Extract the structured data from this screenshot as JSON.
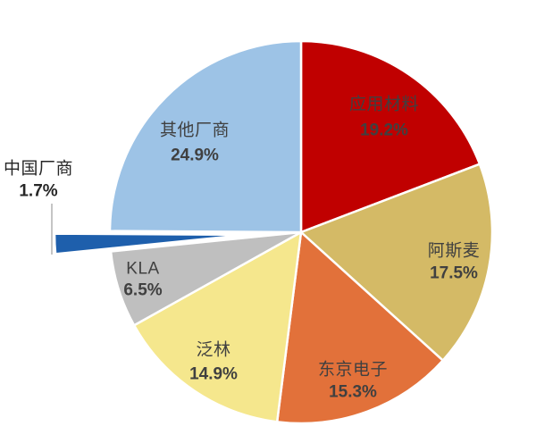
{
  "chart_data": {
    "type": "pie",
    "title": "",
    "value_unit": "%",
    "direction": "clockwise",
    "start_angle_deg": 0,
    "background_color": "#FFFFFF",
    "inside_label_text_color": "#404040",
    "outside_label_text_color": "#262626",
    "leader_line_color": "#A6A6A6",
    "slice_gap_color": "#FFFFFF",
    "slices": [
      {
        "name": "应用材料",
        "value": 19.2,
        "pct_label": "19.2%",
        "color": "#C00000",
        "exploded": false,
        "label_inside": true
      },
      {
        "name": "阿斯麦",
        "value": 17.5,
        "pct_label": "17.5%",
        "color": "#D4BA66",
        "exploded": false,
        "label_inside": true
      },
      {
        "name": "东京电子",
        "value": 15.3,
        "pct_label": "15.3%",
        "color": "#E2713A",
        "exploded": false,
        "label_inside": true
      },
      {
        "name": "泛林",
        "value": 14.9,
        "pct_label": "14.9%",
        "color": "#F5E78D",
        "exploded": false,
        "label_inside": true
      },
      {
        "name": "KLA",
        "value": 6.5,
        "pct_label": "6.5%",
        "color": "#BFBFBF",
        "exploded": false,
        "label_inside": true
      },
      {
        "name": "中国厂商",
        "value": 1.7,
        "pct_label": "1.7%",
        "color": "#1E5FAC",
        "exploded": true,
        "label_inside": false
      },
      {
        "name": "其他厂商",
        "value": 24.9,
        "pct_label": "24.9%",
        "color": "#9DC3E6",
        "exploded": false,
        "label_inside": true
      }
    ]
  }
}
